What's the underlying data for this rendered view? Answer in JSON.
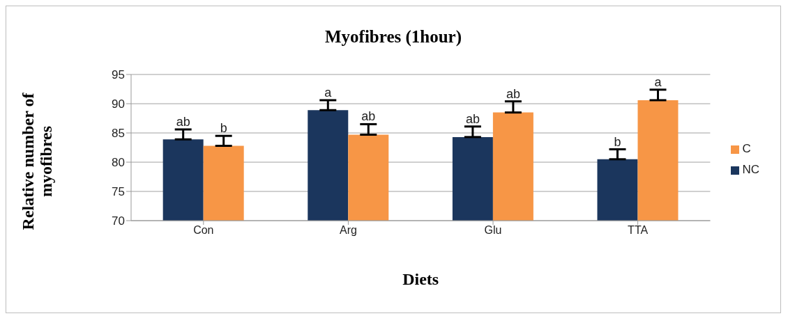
{
  "chart_data": {
    "type": "bar",
    "title": "Myofibres (1hour)",
    "xlabel": "Diets",
    "ylabel": "Relative number of myofibres",
    "categories": [
      "Con",
      "Arg",
      "Glu",
      "TTA"
    ],
    "series": [
      {
        "name": "NC",
        "color": "#1b365d",
        "values": [
          83.9,
          88.9,
          84.3,
          80.5
        ],
        "errors": [
          [
            83.9,
            85.6
          ],
          [
            88.9,
            90.6
          ],
          [
            84.3,
            86.1
          ],
          [
            80.5,
            82.2
          ]
        ],
        "value_labels": [
          "ab",
          "a",
          "ab",
          "b"
        ]
      },
      {
        "name": "C",
        "color": "#f79646",
        "values": [
          82.8,
          84.7,
          88.5,
          90.6
        ],
        "errors": [
          [
            82.8,
            84.5
          ],
          [
            84.7,
            86.5
          ],
          [
            88.5,
            90.4
          ],
          [
            90.6,
            92.4
          ]
        ],
        "value_labels": [
          "b",
          "ab",
          "ab",
          "a"
        ]
      }
    ],
    "ylim": [
      70,
      95
    ],
    "yticks": [
      70,
      75,
      80,
      85,
      90,
      95
    ],
    "grid": "y",
    "legend": "right"
  }
}
